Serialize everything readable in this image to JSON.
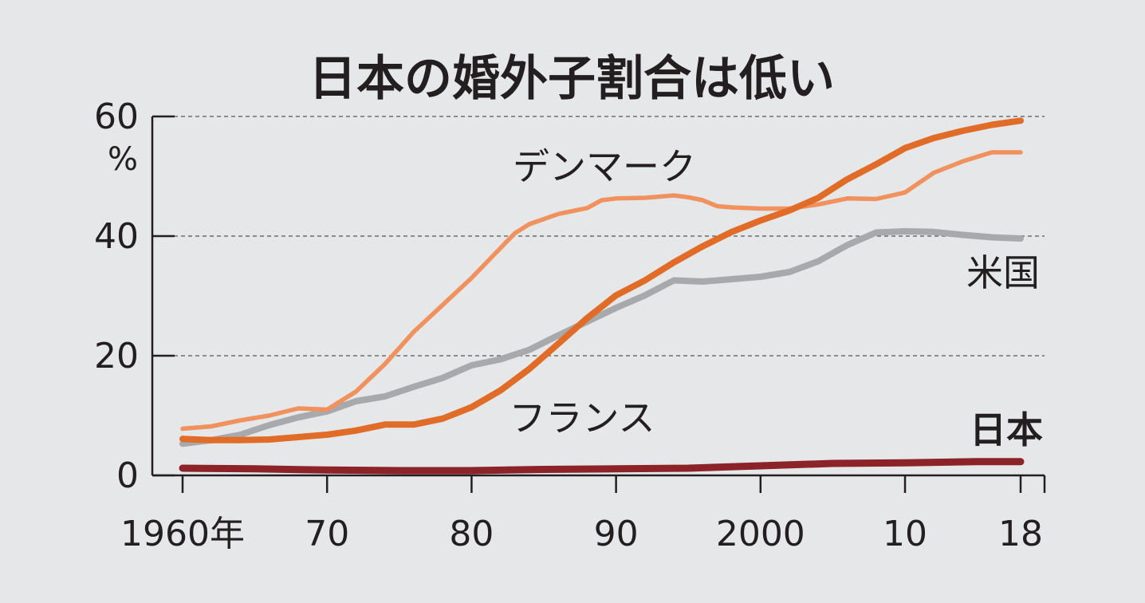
{
  "chart_data": {
    "type": "line",
    "title": "日本の婚外子割合は低い",
    "unit": "%",
    "ylim": [
      0,
      60
    ],
    "y_ticks": [
      {
        "value": 0,
        "label": "0"
      },
      {
        "value": 20,
        "label": "20"
      },
      {
        "value": 40,
        "label": "40"
      },
      {
        "value": 60,
        "label": "60"
      }
    ],
    "xlim": [
      1960,
      2018
    ],
    "x_ticks": [
      {
        "value": 1960,
        "label": "1960年"
      },
      {
        "value": 1970,
        "label": "70"
      },
      {
        "value": 1980,
        "label": "80"
      },
      {
        "value": 1990,
        "label": "90"
      },
      {
        "value": 2000,
        "label": "2000"
      },
      {
        "value": 2010,
        "label": "10"
      },
      {
        "value": 2018,
        "label": "18"
      }
    ],
    "grid": true,
    "series": [
      {
        "name": "米国",
        "color": "#a7a9ac",
        "x": [
          1960,
          1962,
          1964,
          1966,
          1968,
          1970,
          1972,
          1974,
          1976,
          1978,
          1980,
          1982,
          1984,
          1986,
          1988,
          1990,
          1992,
          1994,
          1996,
          1998,
          2000,
          2002,
          2004,
          2006,
          2008,
          2010,
          2012,
          2014,
          2016,
          2018
        ],
        "values": [
          5.3,
          5.9,
          6.8,
          8.4,
          9.7,
          10.7,
          12.4,
          13.2,
          14.8,
          16.3,
          18.4,
          19.4,
          21.0,
          23.4,
          25.7,
          28.0,
          30.1,
          32.6,
          32.4,
          32.8,
          33.2,
          34.0,
          35.8,
          38.5,
          40.6,
          40.8,
          40.7,
          40.2,
          39.8,
          39.6
        ]
      },
      {
        "name": "デンマーク",
        "color": "#f0915e",
        "x": [
          1960,
          1962,
          1964,
          1966,
          1968,
          1970,
          1972,
          1974,
          1976,
          1978,
          1980,
          1982,
          1983,
          1984,
          1986,
          1988,
          1989,
          1990,
          1992,
          1994,
          1995,
          1996,
          1997,
          1998,
          2000,
          2002,
          2004,
          2006,
          2008,
          2010,
          2012,
          2014,
          2016,
          2018
        ],
        "values": [
          7.8,
          8.2,
          9.2,
          10.0,
          11.2,
          11.0,
          14.0,
          18.6,
          24.0,
          28.5,
          33.0,
          38.0,
          40.5,
          42.0,
          43.7,
          44.7,
          46.0,
          46.3,
          46.4,
          46.8,
          46.5,
          46.0,
          45.0,
          44.8,
          44.6,
          44.6,
          45.3,
          46.3,
          46.2,
          47.3,
          50.6,
          52.5,
          54.0,
          54.0
        ]
      },
      {
        "name": "フランス",
        "color": "#e06c27",
        "x": [
          1960,
          1962,
          1964,
          1966,
          1968,
          1970,
          1972,
          1974,
          1976,
          1978,
          1980,
          1982,
          1984,
          1986,
          1988,
          1990,
          1992,
          1994,
          1996,
          1998,
          2000,
          2002,
          2004,
          2006,
          2008,
          2010,
          2012,
          2014,
          2016,
          2018
        ],
        "values": [
          6.1,
          5.9,
          5.9,
          6.0,
          6.4,
          6.8,
          7.5,
          8.5,
          8.5,
          9.5,
          11.4,
          14.2,
          17.8,
          22.0,
          26.3,
          30.1,
          32.6,
          35.6,
          38.3,
          40.7,
          42.6,
          44.3,
          46.4,
          49.5,
          52.0,
          54.7,
          56.4,
          57.6,
          58.6,
          59.3
        ]
      },
      {
        "name": "日本",
        "color": "#8b2328",
        "x": [
          1960,
          1965,
          1970,
          1975,
          1980,
          1985,
          1990,
          1995,
          2000,
          2005,
          2010,
          2015,
          2018
        ],
        "values": [
          1.2,
          1.1,
          0.9,
          0.8,
          0.8,
          1.0,
          1.1,
          1.2,
          1.6,
          2.0,
          2.1,
          2.3,
          2.3
        ]
      }
    ]
  }
}
